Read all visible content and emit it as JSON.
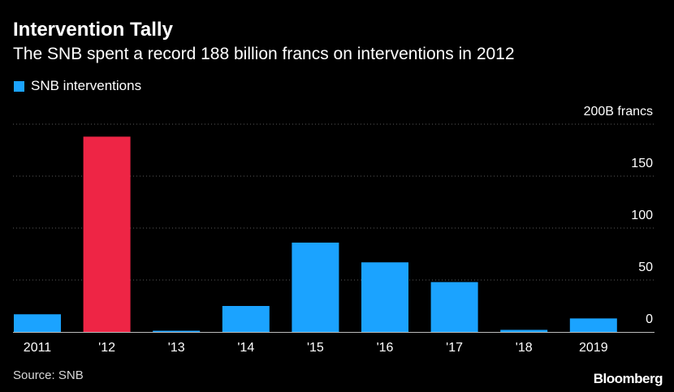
{
  "title": "Intervention Tally",
  "subtitle": "The SNB spent a record 188 billion francs on interventions in 2012",
  "source": "Source: SNB",
  "logo": "Bloomberg",
  "colors": {
    "background": "#000000",
    "bar": "#1ba3ff",
    "highlight": "#ee2545",
    "grid": "#5a5a5a",
    "text": "#ffffff"
  },
  "chart_data": {
    "type": "bar",
    "categories": [
      "2011",
      "'12",
      "'13",
      "'14",
      "'15",
      "'16",
      "'17",
      "'18",
      "2019"
    ],
    "series": [
      {
        "name": "SNB interventions",
        "values": [
          17,
          188,
          1,
          25,
          86,
          67,
          48,
          2,
          13
        ]
      }
    ],
    "highlight_category": "'12",
    "y_ticks": [
      0,
      50,
      100,
      150,
      200
    ],
    "y_tick_labels": [
      "0",
      "50",
      "100",
      "150",
      "200B francs"
    ],
    "ylim": [
      0,
      200
    ],
    "grid": true,
    "legend_position": "top-left",
    "xlabel": "",
    "ylabel": ""
  }
}
